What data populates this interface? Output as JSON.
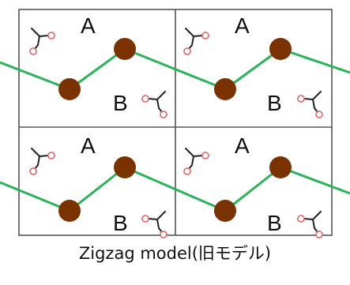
{
  "caption": "Zigzag model(旧モデル)",
  "cell_labels": {
    "upper": "A",
    "lower": "B"
  },
  "colors": {
    "background": "#ffffff",
    "grid": "#555555",
    "zigzag_line": "#2ab45a",
    "atom_fill": "#7a3300",
    "molecule_stroke": "#222222",
    "molecule_end": "#e07272"
  },
  "icons": [
    "molecule-icon"
  ],
  "grid": {
    "rows": 2,
    "columns": 2
  }
}
